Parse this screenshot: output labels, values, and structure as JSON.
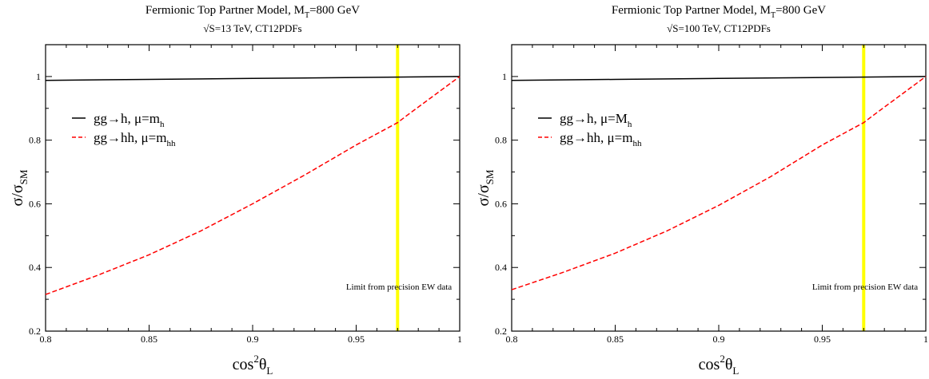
{
  "chart_data": [
    {
      "type": "line",
      "title": "Fermionic Top Partner Model, M_T=800 GeV",
      "title_main": "Fermionic Top Partner Model, M",
      "title_sub": "T",
      "title_tail": "=800 GeV",
      "subtitle": "√S=13 TeV, CT12PDFs",
      "xlabel": "cos²θ_L",
      "xlabel_main": "cos",
      "xlabel_sup": "2",
      "xlabel_theta": "θ",
      "xlabel_sub": "L",
      "ylabel": "σ/σ_SM",
      "ylabel_main": "σ/σ",
      "ylabel_sub": "SM",
      "xlim": [
        0.8,
        1.0
      ],
      "ylim": [
        0.2,
        1.1
      ],
      "xticks": [
        0.8,
        0.85,
        0.9,
        0.95,
        1.0
      ],
      "xtick_labels": [
        "0.8",
        "0.85",
        "0.9",
        "0.95",
        "1"
      ],
      "yticks": [
        0.2,
        0.4,
        0.6,
        0.8,
        1.0
      ],
      "ytick_labels": [
        "0.2",
        "0.4",
        "0.6",
        "0.8",
        "1"
      ],
      "vline": {
        "x": 0.97,
        "color": "#ffff00"
      },
      "annotation": "Limit from precision EW data",
      "legend": [
        {
          "label_main": "gg→h, μ=m",
          "label_sub": "h",
          "color": "#000000",
          "dash": "solid"
        },
        {
          "label_main": "gg→hh, μ=m",
          "label_sub": "hh",
          "color": "#ff0000",
          "dash": "dashed"
        }
      ],
      "series": [
        {
          "name": "gg→h, μ=m_h",
          "color": "#000000",
          "dash": "solid",
          "x": [
            0.8,
            0.85,
            0.9,
            0.95,
            1.0
          ],
          "y": [
            0.988,
            0.991,
            0.994,
            0.997,
            1.0
          ]
        },
        {
          "name": "gg→hh, μ=m_hh",
          "color": "#ff0000",
          "dash": "dashed",
          "x": [
            0.8,
            0.825,
            0.85,
            0.875,
            0.9,
            0.925,
            0.95,
            0.97,
            0.975,
            1.0
          ],
          "y": [
            0.315,
            0.375,
            0.44,
            0.515,
            0.6,
            0.69,
            0.785,
            0.855,
            0.88,
            1.0
          ]
        }
      ]
    },
    {
      "type": "line",
      "title": "Fermionic Top Partner Model, M_T=800 GeV",
      "title_main": "Fermionic Top Partner Model, M",
      "title_sub": "T",
      "title_tail": "=800 GeV",
      "subtitle": "√S=100 TeV, CT12PDFs",
      "xlabel": "cos²θ_L",
      "xlabel_main": "cos",
      "xlabel_sup": "2",
      "xlabel_theta": "θ",
      "xlabel_sub": "L",
      "ylabel": "σ/σ_SM",
      "ylabel_main": "σ/σ",
      "ylabel_sub": "SM",
      "xlim": [
        0.8,
        1.0
      ],
      "ylim": [
        0.2,
        1.1
      ],
      "xticks": [
        0.8,
        0.85,
        0.9,
        0.95,
        1.0
      ],
      "xtick_labels": [
        "0.8",
        "0.85",
        "0.9",
        "0.95",
        "1"
      ],
      "yticks": [
        0.2,
        0.4,
        0.6,
        0.8,
        1.0
      ],
      "ytick_labels": [
        "0.2",
        "0.4",
        "0.6",
        "0.8",
        "1"
      ],
      "vline": {
        "x": 0.97,
        "color": "#ffff00"
      },
      "annotation": "Limit from precision EW data",
      "legend": [
        {
          "label_main": "gg→h, μ=M",
          "label_sub": "h",
          "color": "#000000",
          "dash": "solid"
        },
        {
          "label_main": "gg→hh, μ=m",
          "label_sub": "hh",
          "color": "#ff0000",
          "dash": "dashed"
        }
      ],
      "series": [
        {
          "name": "gg→h, μ=M_h",
          "color": "#000000",
          "dash": "solid",
          "x": [
            0.8,
            0.85,
            0.9,
            0.95,
            1.0
          ],
          "y": [
            0.988,
            0.991,
            0.994,
            0.997,
            1.0
          ]
        },
        {
          "name": "gg→hh, μ=m_hh",
          "color": "#ff0000",
          "dash": "dashed",
          "x": [
            0.8,
            0.825,
            0.85,
            0.875,
            0.9,
            0.925,
            0.95,
            0.97,
            0.975,
            1.0
          ],
          "y": [
            0.33,
            0.385,
            0.445,
            0.515,
            0.595,
            0.685,
            0.785,
            0.855,
            0.88,
            1.0
          ]
        }
      ]
    }
  ]
}
